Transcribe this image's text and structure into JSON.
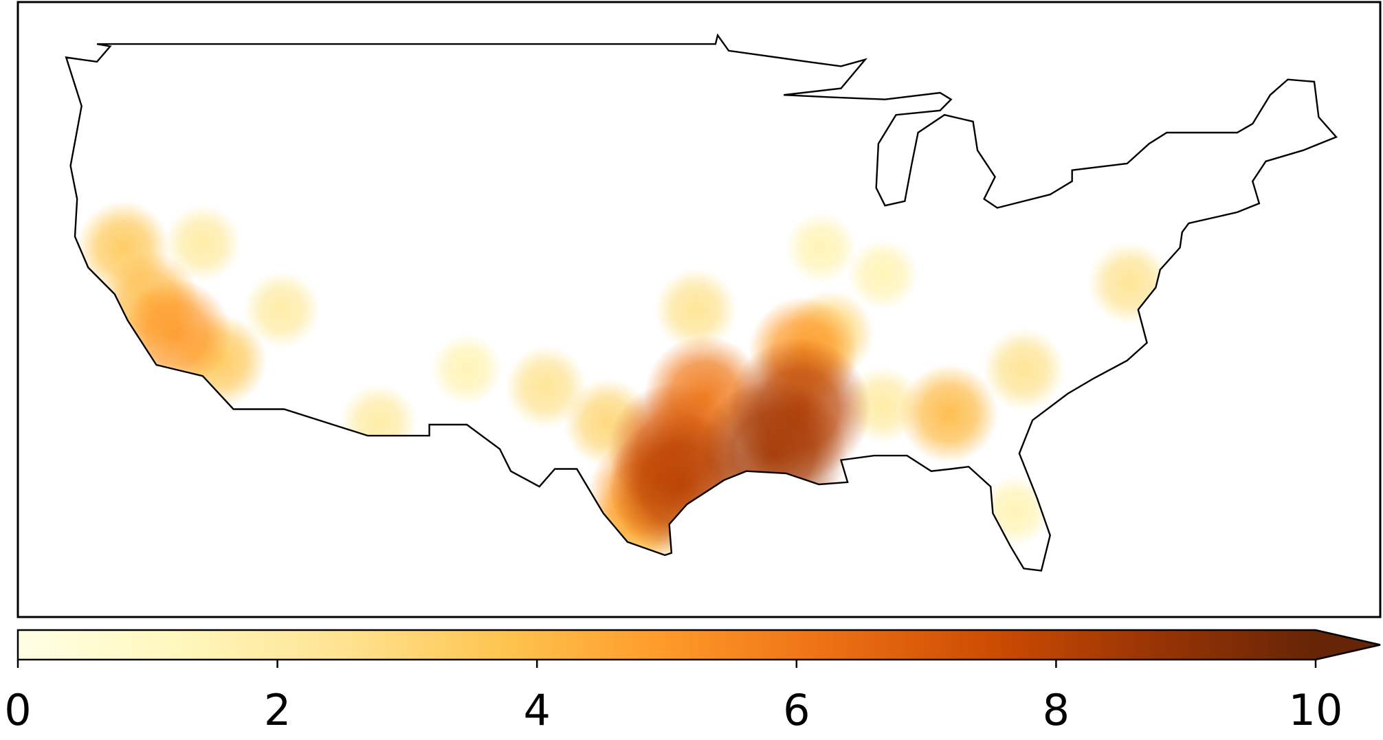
{
  "map": {
    "projection": "plate-carree",
    "hotspots": [
      {
        "lon": -81.6,
        "lat": 27.9,
        "value": 1.5
      },
      {
        "lon": -87.6,
        "lat": 38.6,
        "value": 1.5
      },
      {
        "lon": -106.5,
        "lat": 34.3,
        "value": 1.5
      },
      {
        "lon": -90.4,
        "lat": 39.8,
        "value": 1.5
      },
      {
        "lon": -118.5,
        "lat": 40.0,
        "value": 2
      },
      {
        "lon": -114.9,
        "lat": 37.0,
        "value": 2
      },
      {
        "lon": -110.5,
        "lat": 31.9,
        "value": 2
      },
      {
        "lon": -87.6,
        "lat": 32.7,
        "value": 2
      },
      {
        "lon": -81.2,
        "lat": 34.3,
        "value": 2.5
      },
      {
        "lon": -76.4,
        "lat": 38.2,
        "value": 2.5
      },
      {
        "lon": -102.9,
        "lat": 33.5,
        "value": 2.5
      },
      {
        "lon": -96.1,
        "lat": 37.0,
        "value": 2.5
      },
      {
        "lon": -100.1,
        "lat": 31.9,
        "value": 3
      },
      {
        "lon": -90.0,
        "lat": 35.9,
        "value": 3
      },
      {
        "lon": -122.1,
        "lat": 39.8,
        "value": 3.5
      },
      {
        "lon": -117.7,
        "lat": 34.7,
        "value": 3.5
      },
      {
        "lon": -120.9,
        "lat": 37.4,
        "value": 4
      },
      {
        "lon": -98.9,
        "lat": 27.1,
        "value": 4
      },
      {
        "lon": -84.6,
        "lat": 32.3,
        "value": 4
      },
      {
        "lon": -119.7,
        "lat": 35.9,
        "value": 5
      },
      {
        "lon": -98.5,
        "lat": 28.7,
        "value": 5
      },
      {
        "lon": -91.2,
        "lat": 35.1,
        "value": 5
      },
      {
        "lon": -95.7,
        "lat": 33.1,
        "value": 6
      },
      {
        "lon": -97.1,
        "lat": 30.7,
        "value": 7
      },
      {
        "lon": -96.8,
        "lat": 29.1,
        "value": 8
      },
      {
        "lon": -91.4,
        "lat": 32.5,
        "value": 8
      },
      {
        "lon": -92.6,
        "lat": 30.5,
        "value": 8.5
      }
    ]
  },
  "colorbar": {
    "lim": [
      0,
      10
    ],
    "ticks": [
      0,
      2,
      4,
      6,
      8,
      10
    ],
    "extend": "max",
    "colors": [
      "#ffffe5",
      "#fff7bc",
      "#fee391",
      "#fec44f",
      "#fe9929",
      "#ec7014",
      "#cc4c02",
      "#993404",
      "#662506"
    ]
  }
}
